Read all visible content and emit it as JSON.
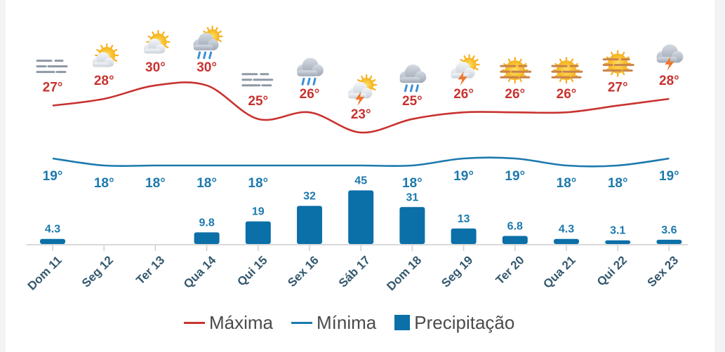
{
  "colors": {
    "max": "#c8332f",
    "min": "#1c79ad",
    "precip": "#0b6fa8",
    "axis_text": "#33586d"
  },
  "legend": {
    "max_label": "Máxima",
    "min_label": "Mínima",
    "precip_label": "Precipitação"
  },
  "chart_data": {
    "type": "bar",
    "categories": [
      "Dom 11",
      "Seg 12",
      "Ter 13",
      "Qua 14",
      "Qui 15",
      "Sex 16",
      "Sáb 17",
      "Dom 18",
      "Seg 19",
      "Ter 20",
      "Qua 21",
      "Qui 22",
      "Sex 23"
    ],
    "series": [
      {
        "name": "Máxima",
        "type": "line",
        "values": [
          27,
          28,
          30,
          30,
          25,
          26,
          23,
          25,
          26,
          26,
          26,
          27,
          28
        ],
        "labels": [
          "27°",
          "28°",
          "30°",
          "30°",
          "25°",
          "26°",
          "23°",
          "25°",
          "26°",
          "26°",
          "26°",
          "27°",
          "28°"
        ]
      },
      {
        "name": "Mínima",
        "type": "line",
        "values": [
          19,
          18,
          18,
          18,
          18,
          18,
          18,
          18,
          19,
          19,
          18,
          18,
          19
        ],
        "labels": [
          "19°",
          "18°",
          "18°",
          "18°",
          "18°",
          "",
          "",
          "18°",
          "19°",
          "19°",
          "18°",
          "18°",
          "19°"
        ]
      },
      {
        "name": "Precipitação",
        "type": "bar",
        "values": [
          4.3,
          0,
          0,
          9.8,
          19,
          32,
          45,
          31,
          13,
          6.8,
          4.3,
          3.1,
          3.6
        ],
        "labels": [
          "4.3",
          "",
          "",
          "9.8",
          "19",
          "32",
          "45",
          "31",
          "13",
          "6.8",
          "4.3",
          "3.1",
          "3.6"
        ]
      }
    ],
    "icons": [
      "fog-icon",
      "partly-sunny-icon",
      "partly-sunny-icon",
      "sun-cloud-rain-icon",
      "fog-icon",
      "rain-cloud-icon",
      "sun-thunderstorm-icon",
      "rain-cloud-icon",
      "sun-thunderstorm-icon",
      "haze-sun-icon",
      "haze-sun-icon",
      "haze-sun-icon",
      "thunderstorm-cloud-icon"
    ],
    "grid": false,
    "legend_position": "bottom-center"
  }
}
